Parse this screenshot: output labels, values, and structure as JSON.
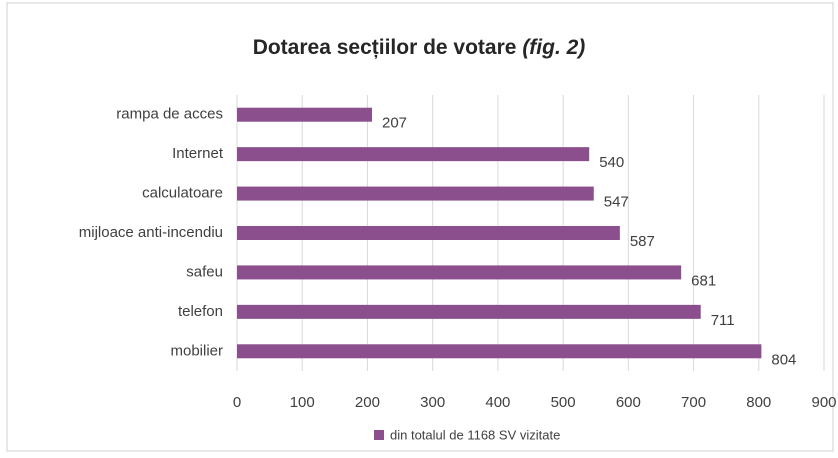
{
  "chart_data": {
    "type": "bar",
    "orientation": "horizontal",
    "title": "Dotarea secțiilor de votare",
    "title_emphasis": "(fig. 2)",
    "categories": [
      "rampa de acces",
      "Internet",
      "calculatoare",
      "mijloace anti-incendiu",
      "safeu",
      "telefon",
      "mobilier"
    ],
    "series": [
      {
        "name": "din totalul de 1168 SV vizitate",
        "color": "#8b4f8d",
        "values": [
          207,
          540,
          547,
          587,
          681,
          711,
          804
        ]
      }
    ],
    "xlim": [
      0,
      900
    ],
    "xticks": [
      0,
      100,
      200,
      300,
      400,
      500,
      600,
      700,
      800,
      900
    ],
    "grid": true,
    "legend": "bottom"
  }
}
